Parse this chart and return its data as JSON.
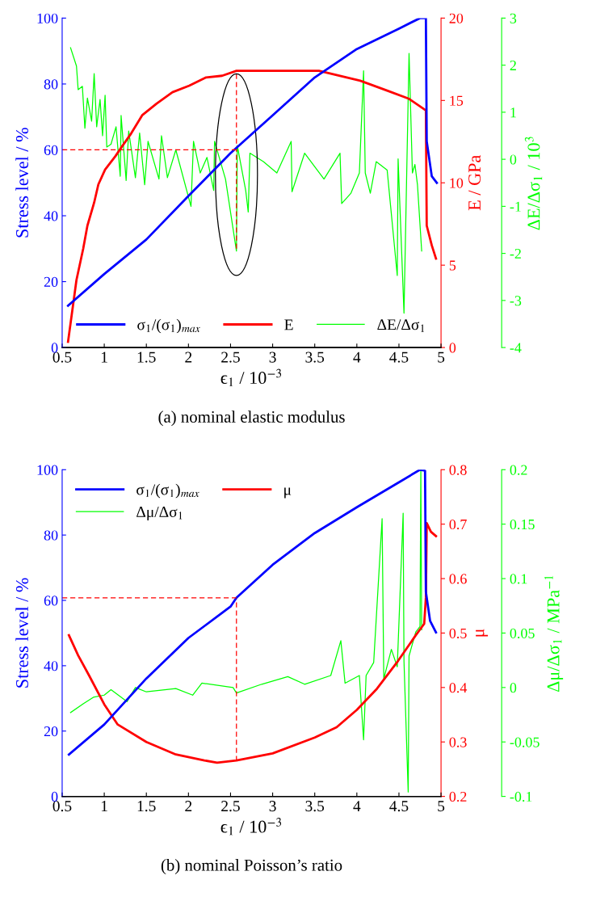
{
  "chart_data": [
    {
      "type": "line",
      "title": "(a) nominal elastic modulus",
      "xlabel": "ϵ$_{1}$ / 10$^{−3}$",
      "ylabel": "Stress level / %",
      "y2label": "E / GPa",
      "y3label": "ΔE/Δσ$_{1}$ / 10$^{3}$",
      "xlim": [
        0.5,
        5
      ],
      "xticks": [
        0.5,
        1,
        1.5,
        2,
        2.5,
        3,
        3.5,
        4,
        4.5,
        5
      ],
      "ylim": [
        0,
        100
      ],
      "yticks": [
        0,
        20,
        40,
        60,
        80,
        100
      ],
      "y2lim": [
        0,
        20
      ],
      "y2ticks": [
        0,
        5,
        10,
        15,
        20
      ],
      "y3lim": [
        -4,
        3
      ],
      "y3ticks": [
        -4,
        -3,
        -2,
        -1,
        0,
        1,
        2,
        3
      ],
      "grid": false,
      "legend": "bottom",
      "marker": "none",
      "line_style": "solid",
      "series": [
        {
          "name": "σ$_{1}$/(σ$_{1}$)$_{max}$",
          "color": "#0000ff",
          "axis": "y",
          "x": [
            0.57,
            1.0,
            1.5,
            2.0,
            2.5,
            3.0,
            3.5,
            4.0,
            4.5,
            4.75,
            4.82,
            4.83,
            4.89,
            4.95
          ],
          "values": [
            12.7,
            22.3,
            32.8,
            46,
            59,
            70.5,
            82,
            90.6,
            96.8,
            100,
            100,
            62.6,
            52,
            50
          ]
        },
        {
          "name": "E",
          "color": "#ff0000",
          "axis": "y2",
          "x": [
            0.57,
            0.67,
            0.75,
            0.8,
            0.88,
            0.93,
            1.01,
            1.13,
            1.21,
            1.32,
            1.45,
            1.62,
            1.81,
            2.01,
            2.21,
            2.4,
            2.57,
            3.06,
            3.55,
            3.71,
            4.04,
            4.36,
            4.62,
            4.82,
            4.83,
            4.89,
            4.94
          ],
          "values": [
            0.35,
            4.1,
            6.0,
            7.4,
            8.8,
            9.9,
            10.8,
            11.6,
            12.2,
            13.0,
            14.1,
            14.8,
            15.5,
            15.9,
            16.4,
            16.5,
            16.8,
            16.8,
            16.8,
            16.6,
            16.2,
            15.6,
            15.1,
            14.4,
            7.4,
            6.2,
            5.4
          ]
        },
        {
          "name": "ΔE/Δσ$_{1}$",
          "color": "#00ff00",
          "axis": "y3",
          "x": [
            0.6,
            0.67,
            0.69,
            0.74,
            0.77,
            0.8,
            0.85,
            0.88,
            0.91,
            0.95,
            0.98,
            1.01,
            1.03,
            1.08,
            1.14,
            1.19,
            1.2,
            1.26,
            1.29,
            1.37,
            1.42,
            1.48,
            1.52,
            1.65,
            1.68,
            1.75,
            1.85,
            2.03,
            2.06,
            2.14,
            2.22,
            2.3,
            2.31,
            2.44,
            2.57,
            2.58,
            2.68,
            2.71,
            2.73,
            2.89,
            3.05,
            3.22,
            3.23,
            3.38,
            3.61,
            3.8,
            3.82,
            3.93,
            4.03,
            4.08,
            4.1,
            4.16,
            4.23,
            4.36,
            4.48,
            4.49,
            4.56,
            4.62,
            4.66,
            4.69,
            4.72,
            4.77
          ],
          "values": [
            2.37,
            1.98,
            1.48,
            1.55,
            0.66,
            1.3,
            0.81,
            1.82,
            0.69,
            1.27,
            0.5,
            1.36,
            0.26,
            0.32,
            0.69,
            -0.36,
            0.93,
            -0.45,
            0.6,
            -0.39,
            0.56,
            -0.54,
            0.38,
            -0.42,
            0.5,
            -0.39,
            0.2,
            -1.0,
            0.38,
            -0.29,
            0.04,
            -0.66,
            0.38,
            -0.42,
            -1.95,
            0.29,
            -0.66,
            -1.12,
            0.13,
            -0.05,
            -0.29,
            0.38,
            -0.69,
            0.13,
            -0.42,
            0.13,
            -0.94,
            -0.72,
            -0.29,
            1.88,
            -0.29,
            -0.72,
            -0.05,
            -0.23,
            -2.47,
            0.01,
            -3.27,
            2.25,
            -0.29,
            -0.11,
            -0.54,
            -1.95
          ]
        },
        {
          "color": "#ff0000",
          "axis": "y",
          "line_style": "dashed",
          "x": [
            0.5,
            2.57
          ],
          "values": [
            60,
            60
          ]
        },
        {
          "color": "#ff0000",
          "axis": "y2",
          "line_style": "dashed",
          "x": [
            2.57,
            2.57
          ],
          "values": [
            6.0,
            16.8
          ]
        }
      ]
    },
    {
      "type": "line",
      "title": "(b) nominal Poisson’s ratio",
      "xlabel": "ϵ$_{1}$ / 10$^{−3}$",
      "ylabel": "Stress level / %",
      "y2label": "μ",
      "y3label": "Δμ/Δσ$_{1}$ / MPa$^{−1}$",
      "xlim": [
        0.5,
        5
      ],
      "xticks": [
        0.5,
        1,
        1.5,
        2,
        2.5,
        3,
        3.5,
        4,
        4.5,
        5
      ],
      "ylim": [
        0,
        100
      ],
      "yticks": [
        0,
        20,
        40,
        60,
        80,
        100
      ],
      "y2lim": [
        0.2,
        0.8
      ],
      "y2ticks": [
        0.2,
        0.3,
        0.4,
        0.5,
        0.6,
        0.7,
        0.8
      ],
      "y3lim": [
        -0.1,
        0.2
      ],
      "y3ticks": [
        -0.1,
        -0.05,
        0,
        0.05,
        0.1,
        0.15,
        0.2
      ],
      "grid": false,
      "legend": "top left",
      "marker": "none",
      "line_style": "solid",
      "series": [
        {
          "name": "σ$_{1}$/(σ$_{1}$)$_{max}$",
          "color": "#0000ff",
          "axis": "y",
          "x": [
            0.58,
            1.0,
            1.5,
            2.0,
            2.5,
            2.57,
            3.0,
            3.5,
            4.0,
            4.49,
            4.75,
            4.81,
            4.82,
            4.87,
            4.94
          ],
          "values": [
            12.8,
            22,
            36.1,
            48.5,
            58.1,
            60.8,
            70.9,
            80.6,
            88.5,
            96,
            100,
            99.7,
            62.6,
            53.7,
            50.2
          ]
        },
        {
          "name": "μ",
          "color": "#ff0000",
          "axis": "y2",
          "x": [
            0.58,
            0.69,
            0.82,
            1.0,
            1.16,
            1.5,
            1.85,
            2.19,
            2.34,
            2.57,
            3.0,
            3.5,
            3.76,
            4.0,
            4.24,
            4.49,
            4.7,
            4.8,
            4.82,
            4.83,
            4.88,
            4.94
          ],
          "values": [
            0.496,
            0.459,
            0.422,
            0.369,
            0.332,
            0.3,
            0.277,
            0.266,
            0.262,
            0.266,
            0.279,
            0.308,
            0.327,
            0.359,
            0.398,
            0.449,
            0.496,
            0.517,
            0.565,
            0.702,
            0.686,
            0.678
          ]
        },
        {
          "name": "Δμ/Δσ$_{1}$",
          "color": "#00ff00",
          "axis": "y3",
          "x": [
            0.6,
            0.75,
            0.87,
            1.0,
            1.08,
            1.27,
            1.37,
            1.5,
            1.85,
            2.05,
            2.16,
            2.53,
            2.57,
            2.87,
            3.18,
            3.38,
            3.69,
            3.81,
            3.86,
            4.03,
            4.08,
            4.11,
            4.2,
            4.3,
            4.32,
            4.41,
            4.48,
            4.55,
            4.56,
            4.61,
            4.62,
            4.7,
            4.75,
            4.76,
            4.77
          ],
          "values": [
            -0.023,
            -0.015,
            -0.009,
            -0.007,
            -0.002,
            -0.013,
            0.0,
            -0.004,
            -0.001,
            -0.007,
            0.004,
            0.0,
            -0.005,
            0.003,
            0.01,
            0.003,
            0.011,
            0.043,
            0.004,
            0.011,
            -0.048,
            0.011,
            0.023,
            0.155,
            0.008,
            0.035,
            0.019,
            0.16,
            0.024,
            -0.096,
            0.029,
            0.051,
            0.056,
            0.2,
            0.053
          ]
        },
        {
          "color": "#ff0000",
          "axis": "y",
          "line_style": "dashed",
          "x": [
            0.5,
            2.57
          ],
          "values": [
            60.8,
            60.8
          ]
        },
        {
          "color": "#ff0000",
          "axis": "y2",
          "line_style": "dashed",
          "x": [
            2.57,
            2.57
          ],
          "values": [
            0.265,
            0.565
          ]
        }
      ]
    }
  ]
}
